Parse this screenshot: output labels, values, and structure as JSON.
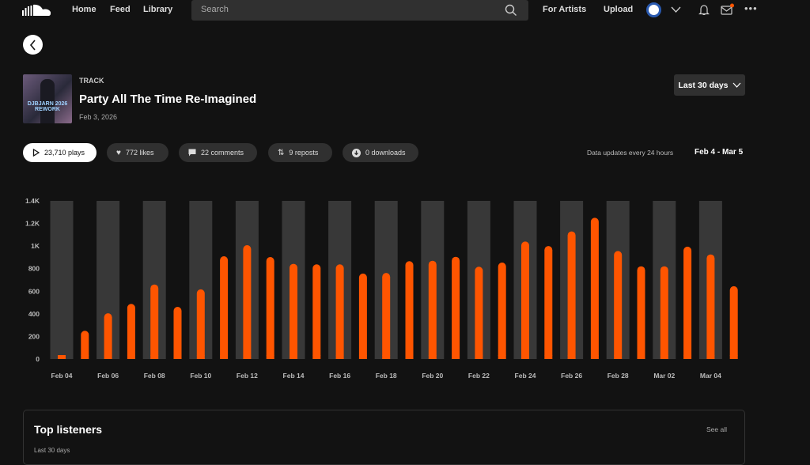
{
  "nav": {
    "home": "Home",
    "feed": "Feed",
    "library": "Library",
    "search_placeholder": "Search",
    "for_artists": "For Artists",
    "upload": "Upload"
  },
  "track": {
    "type_label": "TRACK",
    "title": "Party All The Time Re-Imagined",
    "date": "Feb 3, 2026",
    "artwork_text": "DJBJARN 2026 REWORK"
  },
  "range_select": "Last 30 days",
  "stats": {
    "plays": "23,710 plays",
    "likes": "772 likes",
    "comments": "22 comments",
    "reposts": "9 reposts",
    "downloads": "0 downloads"
  },
  "update_note": "Data updates every 24 hours",
  "date_range": "Feb 4 - Mar 5",
  "colors": {
    "accent": "#ff5500",
    "background": "#121212",
    "highlight_column": "#383838"
  },
  "chart_data": {
    "type": "bar",
    "ylabel": "",
    "xlabel": "",
    "ylim": [
      0,
      1400
    ],
    "yticks": [
      "0",
      "200",
      "400",
      "600",
      "800",
      "1K",
      "1.2K",
      "1.4K"
    ],
    "xtick_labels": [
      "Feb 04",
      "Feb 06",
      "Feb 08",
      "Feb 10",
      "Feb 12",
      "Feb 14",
      "Feb 16",
      "Feb 18",
      "Feb 20",
      "Feb 22",
      "Feb 24",
      "Feb 26",
      "Feb 28",
      "Mar 02",
      "Mar 04"
    ],
    "categories": [
      "Feb 04",
      "Feb 05",
      "Feb 06",
      "Feb 07",
      "Feb 08",
      "Feb 09",
      "Feb 10",
      "Feb 11",
      "Feb 12",
      "Feb 13",
      "Feb 14",
      "Feb 15",
      "Feb 16",
      "Feb 17",
      "Feb 18",
      "Feb 19",
      "Feb 20",
      "Feb 21",
      "Feb 22",
      "Feb 23",
      "Feb 24",
      "Feb 25",
      "Feb 26",
      "Feb 27",
      "Feb 28",
      "Mar 01",
      "Mar 02",
      "Mar 03",
      "Mar 04",
      "Mar 05"
    ],
    "values": [
      20,
      250,
      405,
      488,
      660,
      462,
      617,
      910,
      1008,
      903,
      843,
      838,
      838,
      757,
      762,
      866,
      870,
      905,
      817,
      854,
      1040,
      1000,
      1130,
      1250,
      956,
      821,
      821,
      995,
      926,
      645
    ]
  },
  "top_listeners": {
    "title": "Top listeners",
    "see_all": "See all",
    "subtitle": "Last 30 days"
  }
}
